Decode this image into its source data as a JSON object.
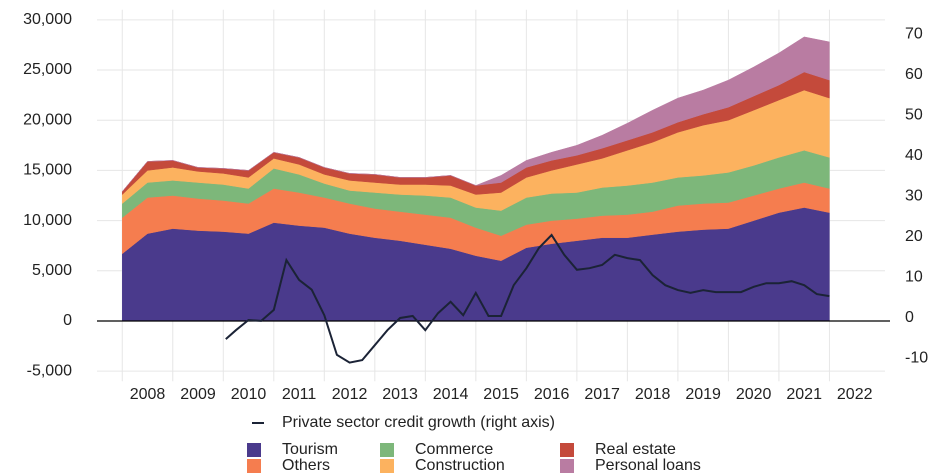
{
  "chart_data": {
    "type": "stacked_area_line",
    "x": [
      2008.0,
      2008.5,
      2009.0,
      2009.5,
      2010.0,
      2010.5,
      2011.0,
      2011.5,
      2012.0,
      2012.5,
      2013.0,
      2013.5,
      2014.0,
      2014.5,
      2015.0,
      2015.5,
      2016.0,
      2016.5,
      2017.0,
      2017.5,
      2018.0,
      2018.5,
      2019.0,
      2019.5,
      2020.0,
      2020.5,
      2021.0,
      2021.5,
      2022.0
    ],
    "series": [
      {
        "name": "Tourism",
        "color": "#4a3a8c",
        "values": [
          6700,
          8700,
          9200,
          9000,
          8900,
          8700,
          9800,
          9500,
          9300,
          8700,
          8300,
          8000,
          7600,
          7200,
          6500,
          6000,
          7300,
          7700,
          8000,
          8300,
          8300,
          8600,
          8900,
          9100,
          9200,
          10000,
          10800,
          11300,
          10800
        ]
      },
      {
        "name": "Others",
        "color": "#f57d4f",
        "values": [
          3600,
          3600,
          3300,
          3200,
          3100,
          3000,
          3400,
          3300,
          3000,
          3000,
          2900,
          2900,
          3000,
          3100,
          2800,
          2500,
          2300,
          2300,
          2200,
          2200,
          2300,
          2300,
          2600,
          2600,
          2600,
          2500,
          2400,
          2500,
          2400
        ]
      },
      {
        "name": "Commerce",
        "color": "#7db77a",
        "values": [
          1400,
          1500,
          1500,
          1600,
          1600,
          1500,
          2000,
          1800,
          1400,
          1300,
          1600,
          1700,
          1900,
          2000,
          2000,
          2500,
          2700,
          2700,
          2600,
          2800,
          2900,
          2900,
          2800,
          2800,
          3000,
          3000,
          3100,
          3200,
          3100
        ]
      },
      {
        "name": "Construction",
        "color": "#fcb25f",
        "values": [
          900,
          1200,
          1300,
          1100,
          1100,
          1100,
          1000,
          1000,
          900,
          1000,
          1000,
          1000,
          1100,
          1200,
          1300,
          1800,
          2000,
          2300,
          2800,
          2900,
          3500,
          4000,
          4500,
          5000,
          5200,
          5500,
          5700,
          6000,
          5900
        ]
      },
      {
        "name": "Real estate",
        "color": "#c44a3b",
        "values": [
          300,
          900,
          700,
          400,
          500,
          700,
          600,
          700,
          700,
          700,
          800,
          700,
          700,
          1000,
          900,
          1000,
          1000,
          1000,
          900,
          1000,
          1000,
          1000,
          1000,
          1100,
          1300,
          1400,
          1500,
          1800,
          1800
        ]
      },
      {
        "name": "Personal loans",
        "color": "#b97ca2",
        "values": [
          0,
          0,
          0,
          0,
          0,
          0,
          0,
          0,
          0,
          0,
          0,
          0,
          0,
          0,
          0,
          700,
          700,
          800,
          1000,
          1300,
          1700,
          2200,
          2400,
          2400,
          2700,
          2900,
          3200,
          3500,
          3800
        ]
      },
      {
        "name": "Private sector credit growth (right axis)",
        "color": "#1b2336",
        "axis": "y2",
        "x": [
          2010.05,
          2010.25,
          2010.5,
          2010.75,
          2011.0,
          2011.25,
          2011.5,
          2011.75,
          2012.0,
          2012.25,
          2012.5,
          2012.75,
          2013.0,
          2013.25,
          2013.5,
          2013.75,
          2014.0,
          2014.25,
          2014.5,
          2014.75,
          2015.0,
          2015.25,
          2015.5,
          2015.75,
          2016.0,
          2016.25,
          2016.5,
          2016.75,
          2017.0,
          2017.25,
          2017.5,
          2017.75,
          2018.0,
          2018.25,
          2018.5,
          2018.75,
          2019.0,
          2019.25,
          2019.5,
          2019.75,
          2020.0,
          2020.25,
          2020.5,
          2020.75,
          2021.0,
          2021.25,
          2021.5,
          2021.75,
          2022.0
        ],
        "values": [
          -5.2,
          -3,
          -0.5,
          -0.7,
          2,
          14.3,
          9.4,
          7,
          0.7,
          -9.1,
          -11,
          -10.4,
          -6.7,
          -3,
          0,
          0.5,
          -3,
          1.2,
          4,
          0.7,
          6.2,
          0.5,
          0.5,
          8.1,
          12.3,
          17.3,
          20.5,
          15.6,
          11.9,
          12.3,
          13.1,
          15.6,
          14.8,
          14.3,
          10.6,
          8.1,
          6.9,
          6.2,
          6.9,
          6.4,
          6.4,
          6.4,
          7.7,
          8.6,
          8.6,
          9.1,
          8.1,
          5.9,
          5.4
        ]
      }
    ],
    "xlim": [
      2007.5,
      2023.1
    ],
    "xticks": [
      2008,
      2009,
      2010,
      2011,
      2012,
      2013,
      2014,
      2015,
      2016,
      2017,
      2018,
      2019,
      2020,
      2021,
      2022
    ],
    "ylim": [
      -6000,
      31000
    ],
    "yticks": [
      {
        "value": -5000,
        "label": "-5,000"
      },
      0,
      {
        "value": 5000,
        "label": "5,000"
      },
      {
        "value": 10000,
        "label": "10,000"
      },
      {
        "value": 15000,
        "label": "15,000"
      },
      {
        "value": 20000,
        "label": "20,000"
      },
      {
        "value": 25000,
        "label": "25,000"
      },
      {
        "value": 30000,
        "label": "30,000"
      }
    ],
    "y2lim": [
      -15.6,
      76.1
    ],
    "y2ticks": [
      -10,
      0,
      10,
      20,
      30,
      40,
      50,
      60,
      70
    ],
    "grid": true
  }
}
